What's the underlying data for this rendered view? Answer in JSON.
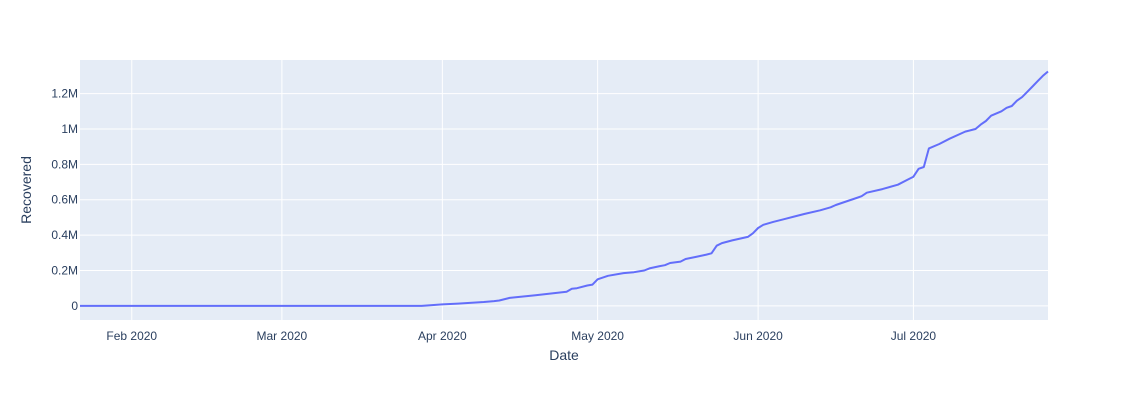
{
  "chart_data": {
    "type": "line",
    "title": "",
    "xlabel": "Date",
    "ylabel": "Recovered",
    "xlim": [
      "2020-01-22",
      "2020-07-27"
    ],
    "ylim": [
      -80000,
      1390000
    ],
    "grid": true,
    "background_color": "#e5ecf6",
    "line_color": "#636efa",
    "x_ticks": [
      {
        "date": "2020-02-01",
        "label": "Feb 2020"
      },
      {
        "date": "2020-03-01",
        "label": "Mar 2020"
      },
      {
        "date": "2020-04-01",
        "label": "Apr 2020"
      },
      {
        "date": "2020-05-01",
        "label": "May 2020"
      },
      {
        "date": "2020-06-01",
        "label": "Jun 2020"
      },
      {
        "date": "2020-07-01",
        "label": "Jul 2020"
      }
    ],
    "y_ticks": [
      {
        "value": 0,
        "label": "0"
      },
      {
        "value": 200000,
        "label": "0.2M"
      },
      {
        "value": 400000,
        "label": "0.4M"
      },
      {
        "value": 600000,
        "label": "0.6M"
      },
      {
        "value": 800000,
        "label": "0.8M"
      },
      {
        "value": 1000000,
        "label": "1M"
      },
      {
        "value": 1200000,
        "label": "1.2M"
      }
    ],
    "series": [
      {
        "points": [
          [
            "2020-01-22",
            0
          ],
          [
            "2020-03-28",
            0
          ],
          [
            "2020-03-29",
            2000
          ],
          [
            "2020-04-01",
            8000
          ],
          [
            "2020-04-04",
            13000
          ],
          [
            "2020-04-09",
            22000
          ],
          [
            "2020-04-11",
            27000
          ],
          [
            "2020-04-12",
            30000
          ],
          [
            "2020-04-14",
            45000
          ],
          [
            "2020-04-19",
            60000
          ],
          [
            "2020-04-25",
            80000
          ],
          [
            "2020-04-26",
            97000
          ],
          [
            "2020-04-27",
            100000
          ],
          [
            "2020-04-29",
            115000
          ],
          [
            "2020-04-30",
            120000
          ],
          [
            "2020-05-01",
            150000
          ],
          [
            "2020-05-03",
            170000
          ],
          [
            "2020-05-06",
            185000
          ],
          [
            "2020-05-08",
            190000
          ],
          [
            "2020-05-10",
            200000
          ],
          [
            "2020-05-11",
            212000
          ],
          [
            "2020-05-13",
            225000
          ],
          [
            "2020-05-14",
            230000
          ],
          [
            "2020-05-15",
            242000
          ],
          [
            "2020-05-17",
            250000
          ],
          [
            "2020-05-18",
            265000
          ],
          [
            "2020-05-20",
            277000
          ],
          [
            "2020-05-22",
            290000
          ],
          [
            "2020-05-23",
            297000
          ],
          [
            "2020-05-24",
            340000
          ],
          [
            "2020-05-25",
            355000
          ],
          [
            "2020-05-27",
            370000
          ],
          [
            "2020-05-30",
            390000
          ],
          [
            "2020-05-31",
            410000
          ],
          [
            "2020-06-01",
            440000
          ],
          [
            "2020-06-02",
            458000
          ],
          [
            "2020-06-04",
            475000
          ],
          [
            "2020-06-06",
            490000
          ],
          [
            "2020-06-08",
            505000
          ],
          [
            "2020-06-10",
            520000
          ],
          [
            "2020-06-13",
            540000
          ],
          [
            "2020-06-15",
            557000
          ],
          [
            "2020-06-16",
            570000
          ],
          [
            "2020-06-18",
            590000
          ],
          [
            "2020-06-20",
            610000
          ],
          [
            "2020-06-21",
            620000
          ],
          [
            "2020-06-22",
            640000
          ],
          [
            "2020-06-25",
            660000
          ],
          [
            "2020-06-28",
            685000
          ],
          [
            "2020-06-30",
            715000
          ],
          [
            "2020-07-01",
            730000
          ],
          [
            "2020-07-02",
            775000
          ],
          [
            "2020-07-03",
            785000
          ],
          [
            "2020-07-04",
            890000
          ],
          [
            "2020-07-06",
            915000
          ],
          [
            "2020-07-08",
            945000
          ],
          [
            "2020-07-11",
            985000
          ],
          [
            "2020-07-13",
            1000000
          ],
          [
            "2020-07-14",
            1025000
          ],
          [
            "2020-07-15",
            1045000
          ],
          [
            "2020-07-16",
            1075000
          ],
          [
            "2020-07-18",
            1100000
          ],
          [
            "2020-07-19",
            1120000
          ],
          [
            "2020-07-20",
            1130000
          ],
          [
            "2020-07-21",
            1160000
          ],
          [
            "2020-07-22",
            1180000
          ],
          [
            "2020-07-23",
            1210000
          ],
          [
            "2020-07-24",
            1240000
          ],
          [
            "2020-07-25",
            1270000
          ],
          [
            "2020-07-26",
            1300000
          ],
          [
            "2020-07-27",
            1325000
          ]
        ]
      }
    ]
  }
}
